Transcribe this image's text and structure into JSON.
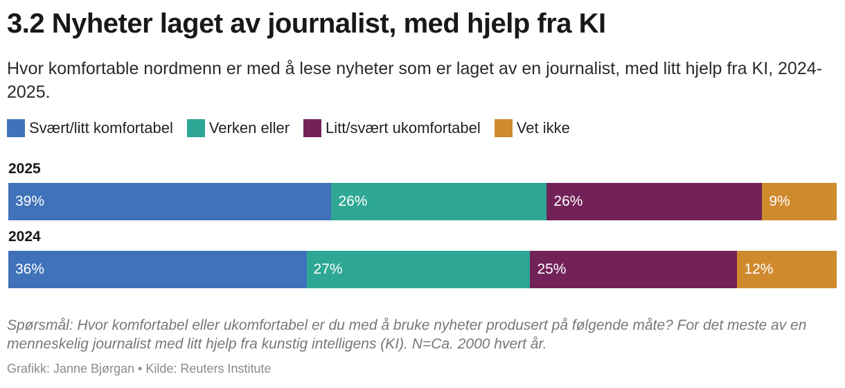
{
  "title": "3.2 Nyheter laget av journalist, med hjelp fra KI",
  "subtitle": "Hvor komfortable nordmenn er med å lese nyheter som er laget av en journalist, med litt hjelp fra KI, 2024-2025.",
  "note": "Spørsmål: Hvor komfortabel eller ukomfortabel er du med å bruke nyheter produsert på følgende måte? For det meste av en menneskelig journalist med litt hjelp fra kunstig intelligens (KI). N=Ca. 2000 hvert år.",
  "credit": "Grafikk: Janne Bjørgan • Kilde: Reuters Institute",
  "chart_data": {
    "type": "bar",
    "orientation": "horizontal",
    "stacked": true,
    "title": "3.2 Nyheter laget av journalist, med hjelp fra KI",
    "legend_position": "top-left",
    "grid": false,
    "categories": [
      "2025",
      "2024"
    ],
    "series": [
      {
        "name": "Svært/litt komfortabel",
        "color": "#3f72b9",
        "values": [
          39,
          36
        ],
        "labels": [
          "39%",
          "36%"
        ]
      },
      {
        "name": "Verken eller",
        "color": "#2ea895",
        "values": [
          26,
          27
        ],
        "labels": [
          "26%",
          "27%"
        ]
      },
      {
        "name": "Litt/svært ukomfortabel",
        "color": "#722259",
        "values": [
          26,
          25
        ],
        "labels": [
          "26%",
          "25%"
        ]
      },
      {
        "name": "Vet ikke",
        "color": "#d08a2e",
        "values": [
          9,
          12
        ],
        "labels": [
          "9%",
          "12%"
        ]
      }
    ]
  }
}
